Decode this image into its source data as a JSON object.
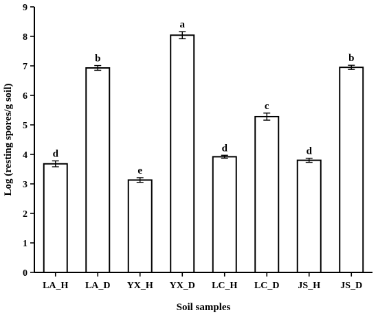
{
  "chart_data": {
    "type": "bar",
    "categories": [
      "LA_H",
      "LA_D",
      "YX_H",
      "YX_D",
      "LC_H",
      "LC_D",
      "JS_H",
      "JS_D"
    ],
    "values": [
      3.68,
      6.93,
      3.13,
      8.04,
      3.92,
      5.28,
      3.8,
      6.95
    ],
    "errors": [
      0.1,
      0.08,
      0.08,
      0.12,
      0.05,
      0.12,
      0.07,
      0.07
    ],
    "significance_labels": [
      "d",
      "b",
      "e",
      "a",
      "d",
      "c",
      "d",
      "b"
    ],
    "xlabel": "Soil samples",
    "ylabel": "Log (resting spores/g soil)",
    "ylim": [
      0,
      9
    ],
    "yticks": [
      0,
      1,
      2,
      3,
      4,
      5,
      6,
      7,
      8,
      9
    ],
    "grid": false,
    "legend": "none"
  }
}
